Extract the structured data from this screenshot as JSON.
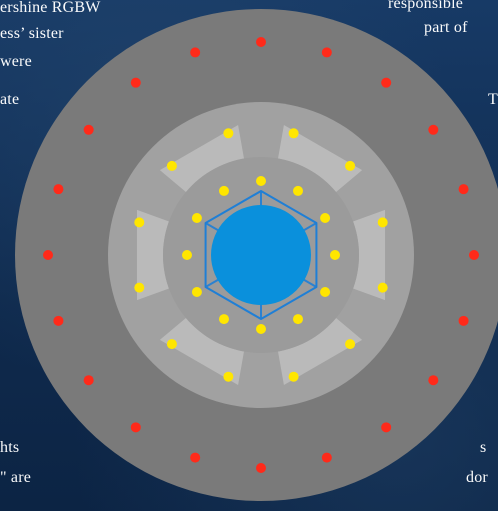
{
  "background_text": [
    {
      "text": "ershine  RGBW"
    },
    {
      "text": "ess’ sister"
    },
    {
      "text": " were"
    },
    {
      "text": "ate"
    },
    {
      "text": "hts"
    },
    {
      "text": "\"  are"
    },
    {
      "text": "responsible"
    },
    {
      "text": "part of"
    },
    {
      "text": "T"
    },
    {
      "text": "s"
    },
    {
      "text": "dor"
    }
  ],
  "diagram": {
    "colors": {
      "background": "#0f2a4d",
      "outer_disc": "#7a7a7a",
      "mid_disc": "#a1a1a1",
      "inner_disc": "#9b9b9b",
      "segment": "#bcbcbc",
      "hex_outline": "#1f7fd6",
      "center_disc": "#0a90dc",
      "red_dot": "#ff2a1a",
      "yellow_dot": "#ffe600"
    },
    "layers": [
      {
        "name": "outer-disc",
        "color_key": "outer_disc"
      },
      {
        "name": "mid-disc",
        "color_key": "mid_disc"
      },
      {
        "name": "segment-ring",
        "color_key": "segment",
        "segments": 6
      },
      {
        "name": "inner-disc",
        "color_key": "inner_disc"
      },
      {
        "name": "hexagon",
        "color_key": "hex_outline"
      },
      {
        "name": "center-disc",
        "color_key": "center_disc"
      }
    ],
    "rings": {
      "red_outer": {
        "count": 20,
        "color_key": "red_dot"
      },
      "yellow_outer": {
        "count": 12,
        "color_key": "yellow_dot"
      },
      "yellow_inner": {
        "count": 12,
        "color_key": "yellow_dot"
      }
    }
  }
}
